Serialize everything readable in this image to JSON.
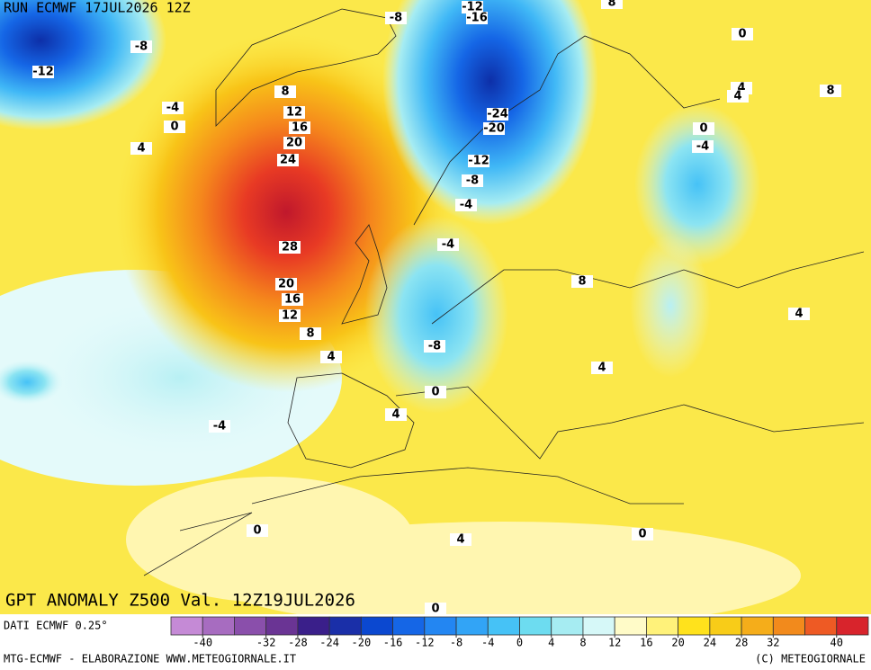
{
  "header": {
    "run": "RUN ECMWF 17JUL2026 12Z"
  },
  "title": "GPT ANOMALY Z500 Val. 12Z19JUL2026",
  "source": "DATI ECMWF 0.25°",
  "footer": {
    "left": "MTG-ECMWF - ELABORAZIONE WWW.METEOGIORNALE.IT",
    "right": "(C) METEOGIORNALE"
  },
  "colorbar": {
    "lim": [
      -44,
      44
    ],
    "colors": [
      "#c58ad6",
      "#a76cc0",
      "#8a4fab",
      "#6a3494",
      "#3a1f8a",
      "#1a2fa8",
      "#0b48d0",
      "#1566e6",
      "#2386f2",
      "#32a4f6",
      "#46c2f6",
      "#6ddcf0",
      "#a6ecf2",
      "#d6f8f8",
      "#fffbc8",
      "#fff27a",
      "#ffe21c",
      "#f8cc18",
      "#f5ad1a",
      "#f28a1c",
      "#ee5a24",
      "#d8242c"
    ],
    "ticks": [
      -40,
      -32,
      -28,
      -24,
      -20,
      -16,
      -12,
      -8,
      -4,
      0,
      4,
      8,
      12,
      16,
      20,
      24,
      28,
      32,
      40
    ]
  },
  "contour_labels": [
    -12,
    -16,
    -8,
    8,
    0,
    -8,
    -12,
    -4,
    0,
    4,
    8,
    12,
    16,
    20,
    24,
    28,
    20,
    16,
    12,
    8,
    4,
    -24,
    -20,
    -12,
    -8,
    -4,
    -4,
    -8,
    0,
    4,
    -4,
    4,
    4,
    8,
    0,
    -4,
    8,
    4,
    4,
    0,
    4,
    0,
    0
  ]
}
